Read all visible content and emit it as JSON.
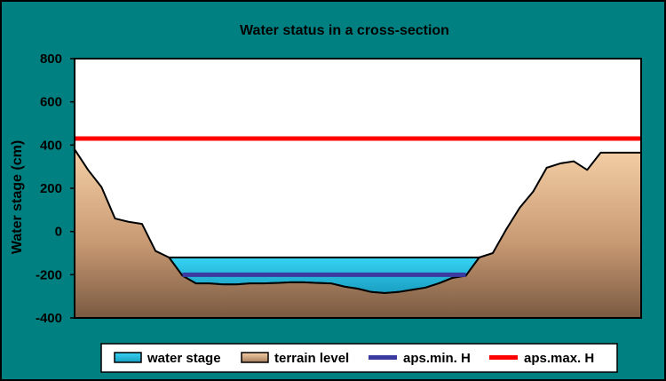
{
  "chart_data": {
    "type": "area",
    "title": "Water status in a cross-section",
    "ylabel": "Water stage (cm)",
    "xlabel": "",
    "ylim": [
      -400,
      800
    ],
    "y_ticks": [
      "800",
      "600",
      "400",
      "200",
      "0",
      "-200",
      "-400"
    ],
    "y_tick_values": [
      800,
      600,
      400,
      200,
      0,
      -200,
      -400
    ],
    "x": [
      0,
      1,
      2,
      3,
      4,
      5,
      6,
      7,
      8,
      9,
      10,
      11,
      12,
      13,
      14,
      15,
      16,
      17,
      18,
      19,
      20,
      21,
      22,
      23,
      24,
      25,
      26,
      27,
      28,
      29,
      30,
      31,
      32,
      33,
      34,
      35,
      36,
      37,
      38,
      39,
      40,
      41,
      42
    ],
    "xlim": [
      0,
      42
    ],
    "terrain_level": [
      380,
      285,
      205,
      60,
      45,
      35,
      -90,
      -120,
      -205,
      -240,
      -240,
      -245,
      -245,
      -240,
      -240,
      -238,
      -235,
      -235,
      -238,
      -240,
      -255,
      -265,
      -280,
      -285,
      -280,
      -270,
      -260,
      -240,
      -215,
      -205,
      -120,
      -100,
      10,
      110,
      185,
      295,
      315,
      325,
      285,
      365,
      365,
      365,
      365
    ],
    "water_stage": {
      "level": -120,
      "from_x": 7,
      "to_x": 30
    },
    "aps_min_h": {
      "value": -200,
      "from_x": 8,
      "to_x": 29
    },
    "aps_max_h": {
      "value": 430
    },
    "legend": [
      {
        "label": "water stage",
        "kind": "area"
      },
      {
        "label": "terrain level",
        "kind": "area"
      },
      {
        "label": "aps.min. H",
        "kind": "line"
      },
      {
        "label": "aps.max. H",
        "kind": "line"
      }
    ],
    "legend_position": "bottom",
    "grid": false
  },
  "colors": {
    "background": "#008080",
    "plot_area": "#ffffff",
    "water_stage": "#26c8ea",
    "terrain_level": "#d9ab82",
    "aps_min_h": "#3b3aa0",
    "aps_max_h": "#ff0000"
  }
}
